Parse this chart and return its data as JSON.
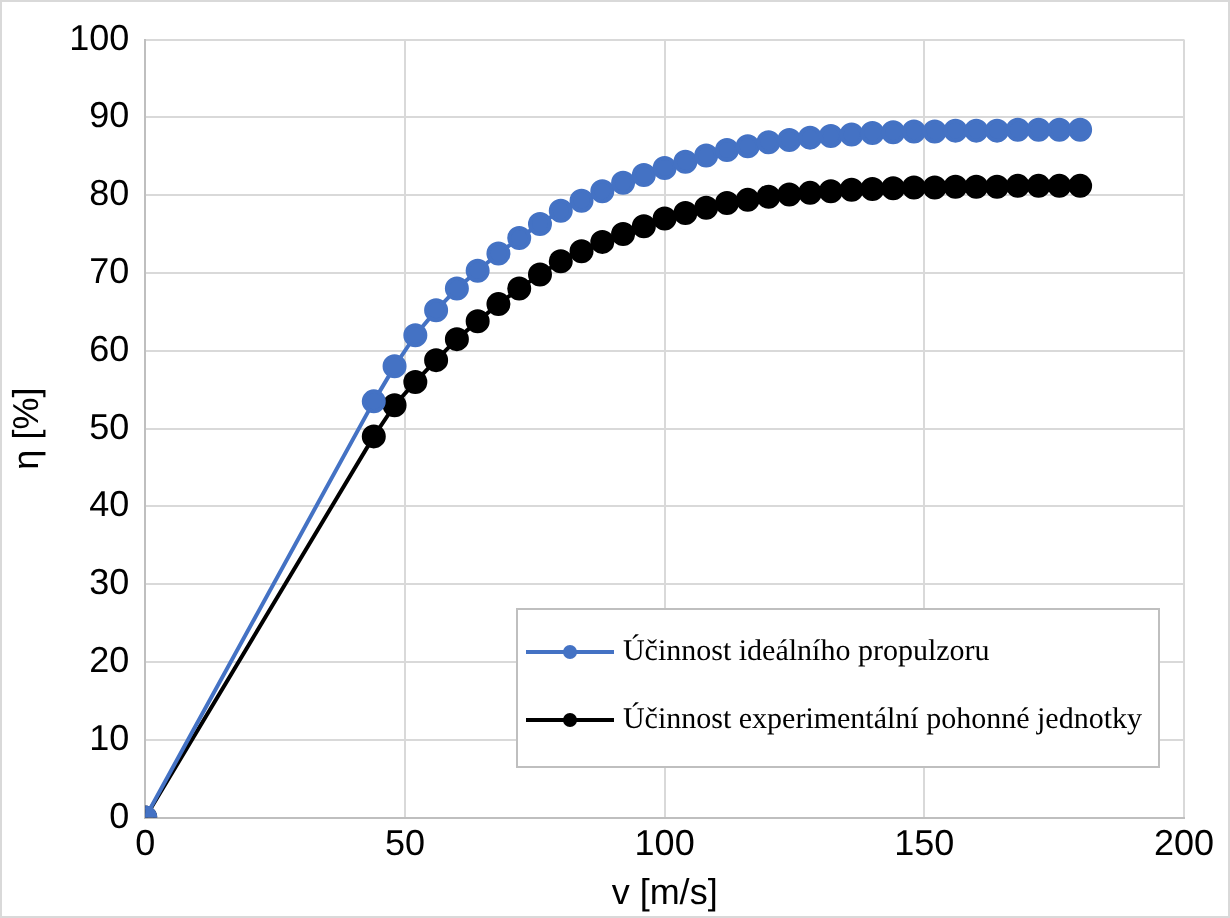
{
  "chart_data": {
    "type": "line",
    "xlabel": "v [m/s]",
    "ylabel": "η [%]",
    "x": [
      0,
      44,
      48,
      52,
      56,
      60,
      64,
      68,
      72,
      76,
      80,
      84,
      88,
      92,
      96,
      100,
      104,
      108,
      112,
      116,
      120,
      124,
      128,
      132,
      136,
      140,
      144,
      148,
      152,
      156,
      160,
      164,
      168,
      172,
      176,
      180
    ],
    "series": [
      {
        "name": "Účinnost ideálního propulzoru",
        "color": "#4472c4",
        "values": [
          0,
          53.5,
          58,
          62,
          65.2,
          68,
          70.3,
          72.5,
          74.5,
          76.3,
          78,
          79.3,
          80.5,
          81.6,
          82.6,
          83.5,
          84.3,
          85.1,
          85.8,
          86.3,
          86.8,
          87.1,
          87.4,
          87.6,
          87.8,
          88,
          88.1,
          88.2,
          88.2,
          88.3,
          88.3,
          88.3,
          88.4,
          88.4,
          88.4,
          88.4
        ]
      },
      {
        "name": "Účinnost experimentální pohonné jednotky",
        "color": "#000000",
        "values": [
          0,
          49,
          53,
          56,
          58.8,
          61.5,
          63.8,
          66,
          68,
          69.8,
          71.5,
          72.8,
          74,
          75,
          76,
          77,
          77.7,
          78.4,
          79,
          79.4,
          79.8,
          80.1,
          80.3,
          80.5,
          80.7,
          80.8,
          80.9,
          81,
          81,
          81.1,
          81.1,
          81.1,
          81.2,
          81.2,
          81.2,
          81.2
        ]
      }
    ],
    "xlim": [
      0,
      200
    ],
    "xticks": [
      0,
      50,
      100,
      150,
      200
    ],
    "ylim": [
      0,
      100
    ],
    "yticks": [
      0,
      10,
      20,
      30,
      40,
      50,
      60,
      70,
      80,
      90,
      100
    ],
    "grid": true,
    "legend": "bottom right",
    "marker": "circle",
    "line_style": "solid"
  }
}
